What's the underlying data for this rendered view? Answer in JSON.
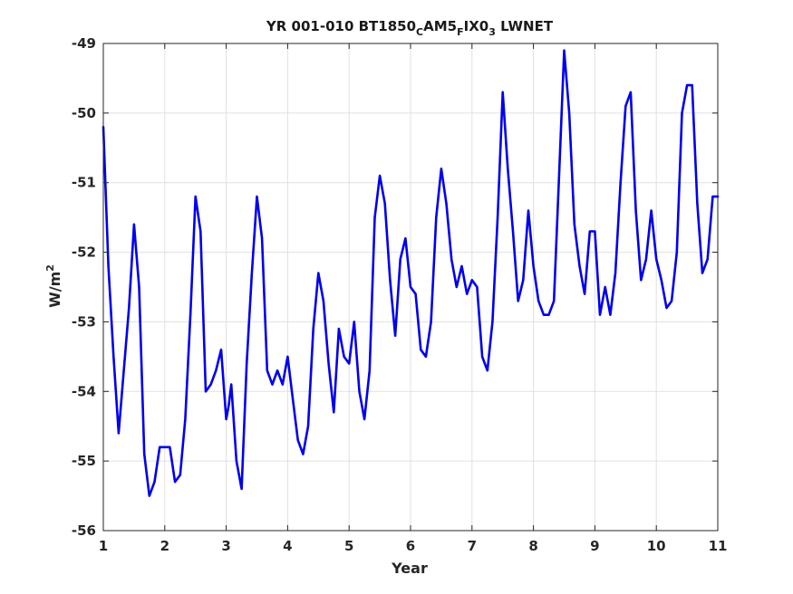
{
  "chart_data": {
    "type": "line",
    "title": {
      "main": "YR 001-010 BT1850",
      "sub1": "C",
      "mid": "AM5",
      "sub2": "F",
      "mid2": "IX0",
      "sub3": "3",
      "tail": " LWNET"
    },
    "xlabel": "Year",
    "ylabel": {
      "base": "W/m",
      "sup": "2"
    },
    "xlim": [
      1,
      11
    ],
    "ylim": [
      -56,
      -49
    ],
    "xticks": [
      1,
      2,
      3,
      4,
      5,
      6,
      7,
      8,
      9,
      10,
      11
    ],
    "yticks": [
      -56,
      -55,
      -54,
      -53,
      -52,
      -51,
      -50,
      -49
    ],
    "grid": true,
    "series": [
      {
        "color": "#0000ee",
        "x": [
          1.0,
          1.083,
          1.167,
          1.25,
          1.333,
          1.417,
          1.5,
          1.583,
          1.667,
          1.75,
          1.833,
          1.917,
          2.0,
          2.083,
          2.167,
          2.25,
          2.333,
          2.417,
          2.5,
          2.583,
          2.667,
          2.75,
          2.833,
          2.917,
          3.0,
          3.042,
          3.083,
          3.167,
          3.25,
          3.333,
          3.417,
          3.5,
          3.583,
          3.667,
          3.75,
          3.833,
          3.917,
          4.0,
          4.083,
          4.167,
          4.25,
          4.333,
          4.417,
          4.5,
          4.583,
          4.667,
          4.75,
          4.833,
          4.917,
          5.0,
          5.083,
          5.167,
          5.25,
          5.333,
          5.417,
          5.5,
          5.583,
          5.667,
          5.75,
          5.833,
          5.917,
          6.0,
          6.083,
          6.167,
          6.25,
          6.333,
          6.417,
          6.5,
          6.583,
          6.667,
          6.75,
          6.833,
          6.917,
          7.0,
          7.083,
          7.167,
          7.25,
          7.333,
          7.417,
          7.5,
          7.583,
          7.667,
          7.75,
          7.833,
          7.917,
          8.0,
          8.083,
          8.167,
          8.25,
          8.333,
          8.417,
          8.5,
          8.583,
          8.667,
          8.75,
          8.833,
          8.917,
          9.0,
          9.083,
          9.167,
          9.25,
          9.333,
          9.417,
          9.5,
          9.583,
          9.667,
          9.75,
          9.833,
          9.917,
          10.0,
          10.083,
          10.167,
          10.25,
          10.333,
          10.417,
          10.5,
          10.583,
          10.667,
          10.75,
          10.833,
          10.917,
          11.0
        ],
        "y": [
          -50.2,
          -52.2,
          -53.5,
          -54.6,
          -53.7,
          -52.8,
          -51.6,
          -52.5,
          -54.9,
          -55.5,
          -55.3,
          -54.8,
          -54.8,
          -54.8,
          -55.3,
          -55.2,
          -54.4,
          -52.9,
          -51.2,
          -51.7,
          -54.0,
          -53.9,
          -53.7,
          -53.4,
          -54.4,
          -54.2,
          -53.9,
          -55.0,
          -55.4,
          -53.6,
          -52.3,
          -51.2,
          -51.8,
          -53.7,
          -53.9,
          -53.7,
          -53.9,
          -53.5,
          -54.1,
          -54.7,
          -54.9,
          -54.5,
          -53.1,
          -52.3,
          -52.7,
          -53.6,
          -54.3,
          -53.1,
          -53.5,
          -53.6,
          -53.0,
          -54.0,
          -54.4,
          -53.7,
          -51.5,
          -50.9,
          -51.3,
          -52.4,
          -53.2,
          -52.1,
          -51.8,
          -52.5,
          -52.6,
          -53.4,
          -53.5,
          -53.0,
          -51.5,
          -50.8,
          -51.3,
          -52.1,
          -52.5,
          -52.2,
          -52.6,
          -52.4,
          -52.5,
          -53.5,
          -53.7,
          -53.0,
          -51.5,
          -49.7,
          -50.8,
          -51.7,
          -52.7,
          -52.4,
          -51.4,
          -52.2,
          -52.7,
          -52.9,
          -52.9,
          -52.7,
          -50.9,
          -49.1,
          -50.0,
          -51.6,
          -52.2,
          -52.6,
          -51.7,
          -51.7,
          -52.9,
          -52.5,
          -52.9,
          -52.3,
          -51.0,
          -49.9,
          -49.7,
          -51.4,
          -52.4,
          -52.1,
          -51.4,
          -52.1,
          -52.4,
          -52.8,
          -52.7,
          -52.0,
          -50.0,
          -49.6,
          -49.6,
          -51.3,
          -52.3,
          -52.1,
          -51.2,
          -51.2
        ]
      }
    ]
  }
}
